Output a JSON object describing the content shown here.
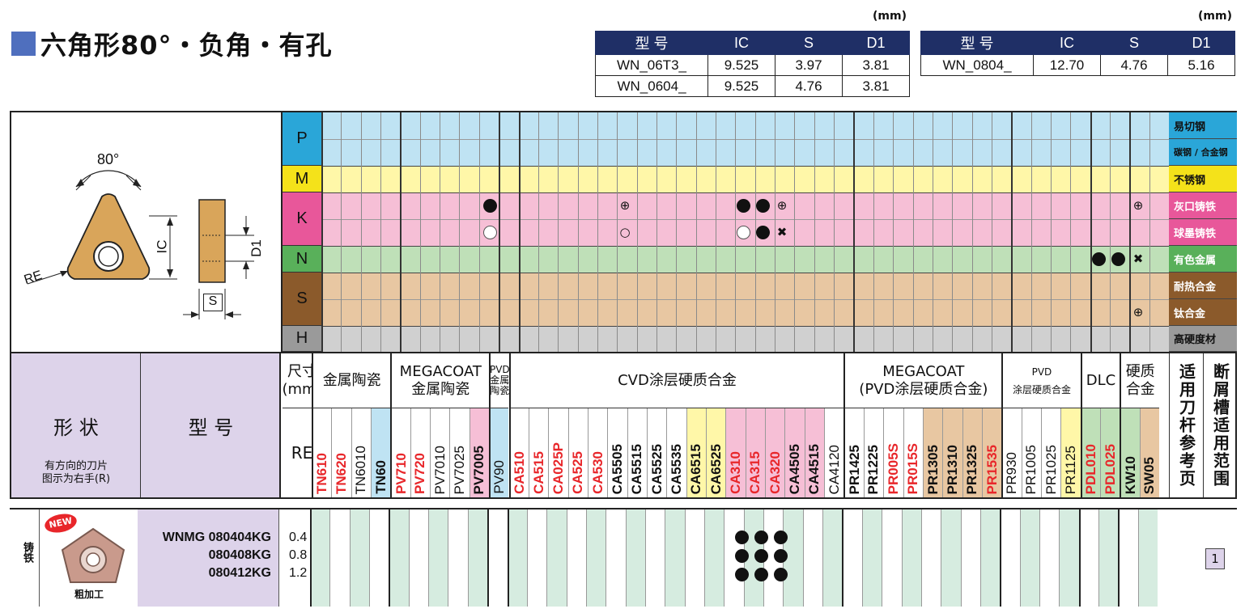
{
  "title": "六角形80°・负角・有孔",
  "spec_table_1": {
    "unit": "(mm)",
    "headers": [
      "型 号",
      "IC",
      "S",
      "D1"
    ],
    "rows": [
      [
        "WN_06T3_",
        "9.525",
        "3.97",
        "3.81"
      ],
      [
        "WN_0604_",
        "9.525",
        "4.76",
        "3.81"
      ]
    ]
  },
  "spec_table_2": {
    "unit": "(mm)",
    "headers": [
      "型 号",
      "IC",
      "S",
      "D1"
    ],
    "rows": [
      [
        "WN_0804_",
        "12.70",
        "4.76",
        "5.16"
      ]
    ]
  },
  "diagram": {
    "angle_label": "80°",
    "re_label": "RE",
    "ic_label": "IC",
    "d1_label": "D1",
    "s_label": "S"
  },
  "iso_rows": [
    {
      "code": "P",
      "materials": [
        "易切钢",
        "碳钢 / 合金钢"
      ],
      "color": "#bfe3f3",
      "label_color": "#2aa6d8"
    },
    {
      "code": "M",
      "materials": [
        "不锈钢"
      ],
      "color": "#fff7a8",
      "label_color": "#f4e21a"
    },
    {
      "code": "K",
      "materials": [
        "灰口铸铁",
        "球墨铸铁"
      ],
      "color": "#f6bfd6",
      "label_color": "#e8579a"
    },
    {
      "code": "N",
      "materials": [
        "有色金属"
      ],
      "color": "#bfe0b8",
      "label_color": "#59b05a"
    },
    {
      "code": "S",
      "materials": [
        "耐热合金",
        "钛合金"
      ],
      "color": "#e8c7a2",
      "label_color": "#8b5a2b"
    },
    {
      "code": "H",
      "materials": [
        "高硬度材"
      ],
      "color": "#d0d0d0",
      "label_color": "#9a9a9a"
    }
  ],
  "header": {
    "shape_label": "形 状",
    "shape_note": "有方向的刀片\n图示为右手(R)",
    "model_label": "型 号",
    "size_label": "尺寸\n(mm)",
    "re_label": "RE",
    "groups": [
      "金属陶瓷",
      "MEGACOAT\n金属陶瓷",
      "PVD\n金属陶瓷",
      "CVD涂层硬质合金",
      "MEGACOAT\n(PVD涂层硬质合金)",
      "PVD\n涂层硬质合金",
      "DLC",
      "硬质\n合金"
    ],
    "tool_ref_label": "适用刀杆参考页",
    "chip_label": "断屑槽适用范围"
  },
  "grades": [
    "TN610",
    "TN620",
    "TN6010",
    "TN60",
    "PV710",
    "PV720",
    "PV7010",
    "PV7025",
    "PV7005",
    "PV90",
    "CA510",
    "CA515",
    "CA025P",
    "CA525",
    "CA530",
    "CA5505",
    "CA5515",
    "CA5525",
    "CA5535",
    "CA6515",
    "CA6525",
    "CA310",
    "CA315",
    "CA320",
    "CA4505",
    "CA4515",
    "CA4120",
    "PR1425",
    "PR1225",
    "PR005S",
    "PR015S",
    "PR1305",
    "PR1310",
    "PR1325",
    "PR1535",
    "PR930",
    "PR1005",
    "PR1025",
    "PR1125",
    "PDL010",
    "PDL025",
    "KW10",
    "SW05"
  ],
  "product": {
    "category": "铸铁",
    "badge": "NEW",
    "caption": "粗加工",
    "models": [
      "WNMG 080404KG",
      "080408KG",
      "080412KG"
    ],
    "re_values": [
      "0.4",
      "0.8",
      "1.2"
    ],
    "page_ref": "1"
  },
  "colors": {
    "title_square": "#4f6fbe",
    "spec_header": "#1f2f66",
    "header_purple": "#ddd3ea",
    "red_grade": "#e8262a"
  }
}
